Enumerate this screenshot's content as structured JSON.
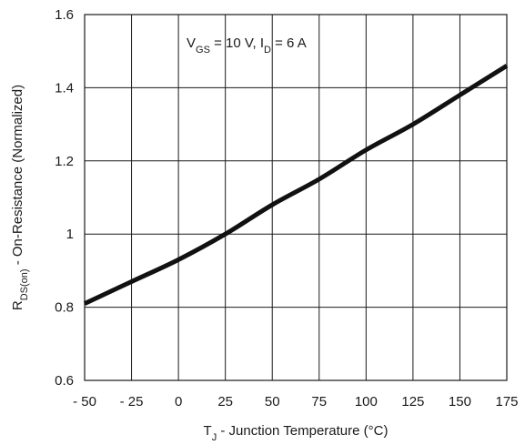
{
  "chart_data": {
    "type": "line",
    "x": [
      -50,
      -25,
      0,
      25,
      50,
      75,
      100,
      125,
      150,
      175
    ],
    "series": [
      {
        "values": [
          0.81,
          0.87,
          0.93,
          1.0,
          1.08,
          1.15,
          1.23,
          1.3,
          1.38,
          1.46
        ]
      }
    ],
    "xticks": [
      "- 50",
      "- 25",
      "0",
      "25",
      "50",
      "75",
      "100",
      "125",
      "150",
      "175"
    ],
    "yticks": [
      "0.6",
      "0.8",
      "1",
      "1.2",
      "1.4",
      "1.6"
    ],
    "xlim": [
      -50,
      175
    ],
    "ylim": [
      0.6,
      1.6
    ],
    "xlabel": {
      "main": "T",
      "sub": "J",
      "rest": " - Junction Temperature (°C)"
    },
    "ylabel": {
      "main": "R",
      "sub": "DS(on)",
      "rest": " - On-Resistance (Normalized)"
    },
    "annotation": {
      "v": "V",
      "v_sub": "GS",
      "mid": " = 10 V, I",
      "i_sub": "D",
      "end": " = 6 A"
    },
    "grid": true,
    "line_color": "#111111"
  }
}
